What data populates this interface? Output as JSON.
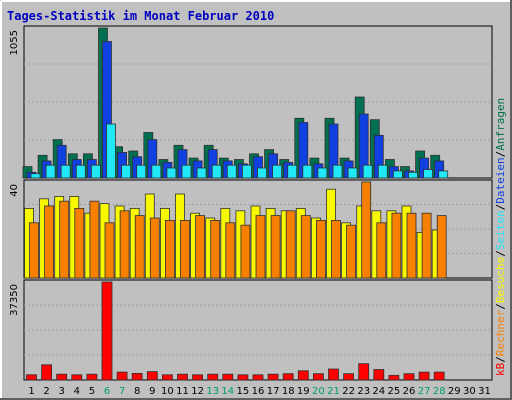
{
  "chart_data": {
    "type": "bar",
    "title": "Tages-Statistik im Monat Februar 2010",
    "days": [
      "1",
      "2",
      "3",
      "4",
      "5",
      "6",
      "7",
      "8",
      "9",
      "10",
      "11",
      "12",
      "13",
      "14",
      "15",
      "16",
      "17",
      "18",
      "19",
      "20",
      "21",
      "22",
      "23",
      "24",
      "25",
      "26",
      "27",
      "28",
      "29",
      "30",
      "31"
    ],
    "weekend_days": [
      6,
      7,
      13,
      14,
      20,
      21,
      27,
      28
    ],
    "panels": [
      {
        "id": "top",
        "scale_max_label": "1055",
        "ymax": 1055,
        "series": [
          {
            "name": "Anfragen",
            "color": "#007050",
            "values": [
              80,
              160,
              270,
              170,
              170,
              1055,
              220,
              190,
              320,
              130,
              230,
              140,
              230,
              140,
              130,
              170,
              200,
              130,
              420,
              140,
              420,
              140,
              570,
              410,
              130,
              80,
              190,
              160,
              null,
              null,
              null
            ]
          },
          {
            "name": "Dateien",
            "color": "#1040e0",
            "values": [
              40,
              120,
              230,
              130,
              130,
              960,
              180,
              150,
              270,
              110,
              200,
              120,
              200,
              120,
              100,
              150,
              170,
              110,
              390,
              100,
              380,
              120,
              450,
              300,
              80,
              50,
              140,
              120,
              null,
              null,
              null
            ]
          },
          {
            "name": "Seiten",
            "color": "#20e8f8",
            "values": [
              30,
              90,
              90,
              90,
              90,
              380,
              90,
              90,
              90,
              70,
              90,
              70,
              90,
              90,
              90,
              70,
              90,
              90,
              90,
              70,
              90,
              70,
              90,
              90,
              50,
              40,
              60,
              50,
              null,
              null,
              null
            ]
          }
        ]
      },
      {
        "id": "mid",
        "scale_max_label": "40",
        "ymax": 40,
        "series": [
          {
            "name": "Besuche",
            "color": "#f8f800",
            "values": [
              29,
              33,
              34,
              34,
              27,
              31,
              30,
              29,
              35,
              29,
              35,
              27,
              25,
              29,
              28,
              30,
              29,
              28,
              29,
              25,
              37,
              23,
              30,
              28,
              28,
              30,
              19,
              20,
              null,
              null,
              null
            ]
          },
          {
            "name": "Rechner",
            "color": "#f88000",
            "values": [
              23,
              30,
              32,
              29,
              32,
              23,
              28,
              26,
              25,
              24,
              24,
              26,
              24,
              23,
              22,
              26,
              26,
              28,
              26,
              24,
              24,
              22,
              40,
              23,
              27,
              27,
              27,
              26,
              null,
              null,
              null
            ]
          }
        ]
      },
      {
        "id": "bottom",
        "scale_max_label": "37350",
        "ymax": 37350,
        "series": [
          {
            "name": "kB",
            "color": "#ff0000",
            "values": [
              2000,
              5800,
              2200,
              2000,
              2200,
              37350,
              3000,
              2500,
              3200,
              2000,
              2200,
              2000,
              2200,
              2200,
              2000,
              2000,
              2200,
              2400,
              3500,
              2400,
              4200,
              2400,
              6200,
              4000,
              1800,
              2400,
              3000,
              3000,
              null,
              null,
              null
            ]
          }
        ]
      }
    ],
    "legend_right": [
      {
        "text": "Anfragen",
        "color": "#007050"
      },
      {
        "text": "/",
        "color": "#000000"
      },
      {
        "text": "Dateien",
        "color": "#1040e0"
      },
      {
        "text": "/",
        "color": "#000000"
      },
      {
        "text": "Seiten",
        "color": "#20e8f8"
      },
      {
        "text": "/",
        "color": "#000000"
      },
      {
        "text": "Besuche",
        "color": "#f8f800"
      },
      {
        "text": "/",
        "color": "#000000"
      },
      {
        "text": "Rechner",
        "color": "#f88000"
      },
      {
        "text": "/",
        "color": "#000000"
      },
      {
        "text": "kB",
        "color": "#ff0000"
      }
    ],
    "colors": {
      "title": "#0000c0",
      "background": "#c0c0c0",
      "weekday_label": "#000000",
      "weekend_label": "#00a060"
    }
  }
}
